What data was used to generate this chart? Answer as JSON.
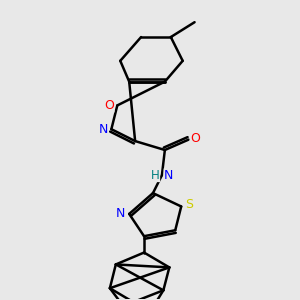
{
  "background_color": "#e8e8e8",
  "bond_color": "#000000",
  "atom_colors": {
    "O": "#ff0000",
    "N": "#0000ff",
    "S": "#cccc00",
    "H": "#008080",
    "C": "#000000"
  },
  "line_width": 1.8,
  "font_size": 9
}
